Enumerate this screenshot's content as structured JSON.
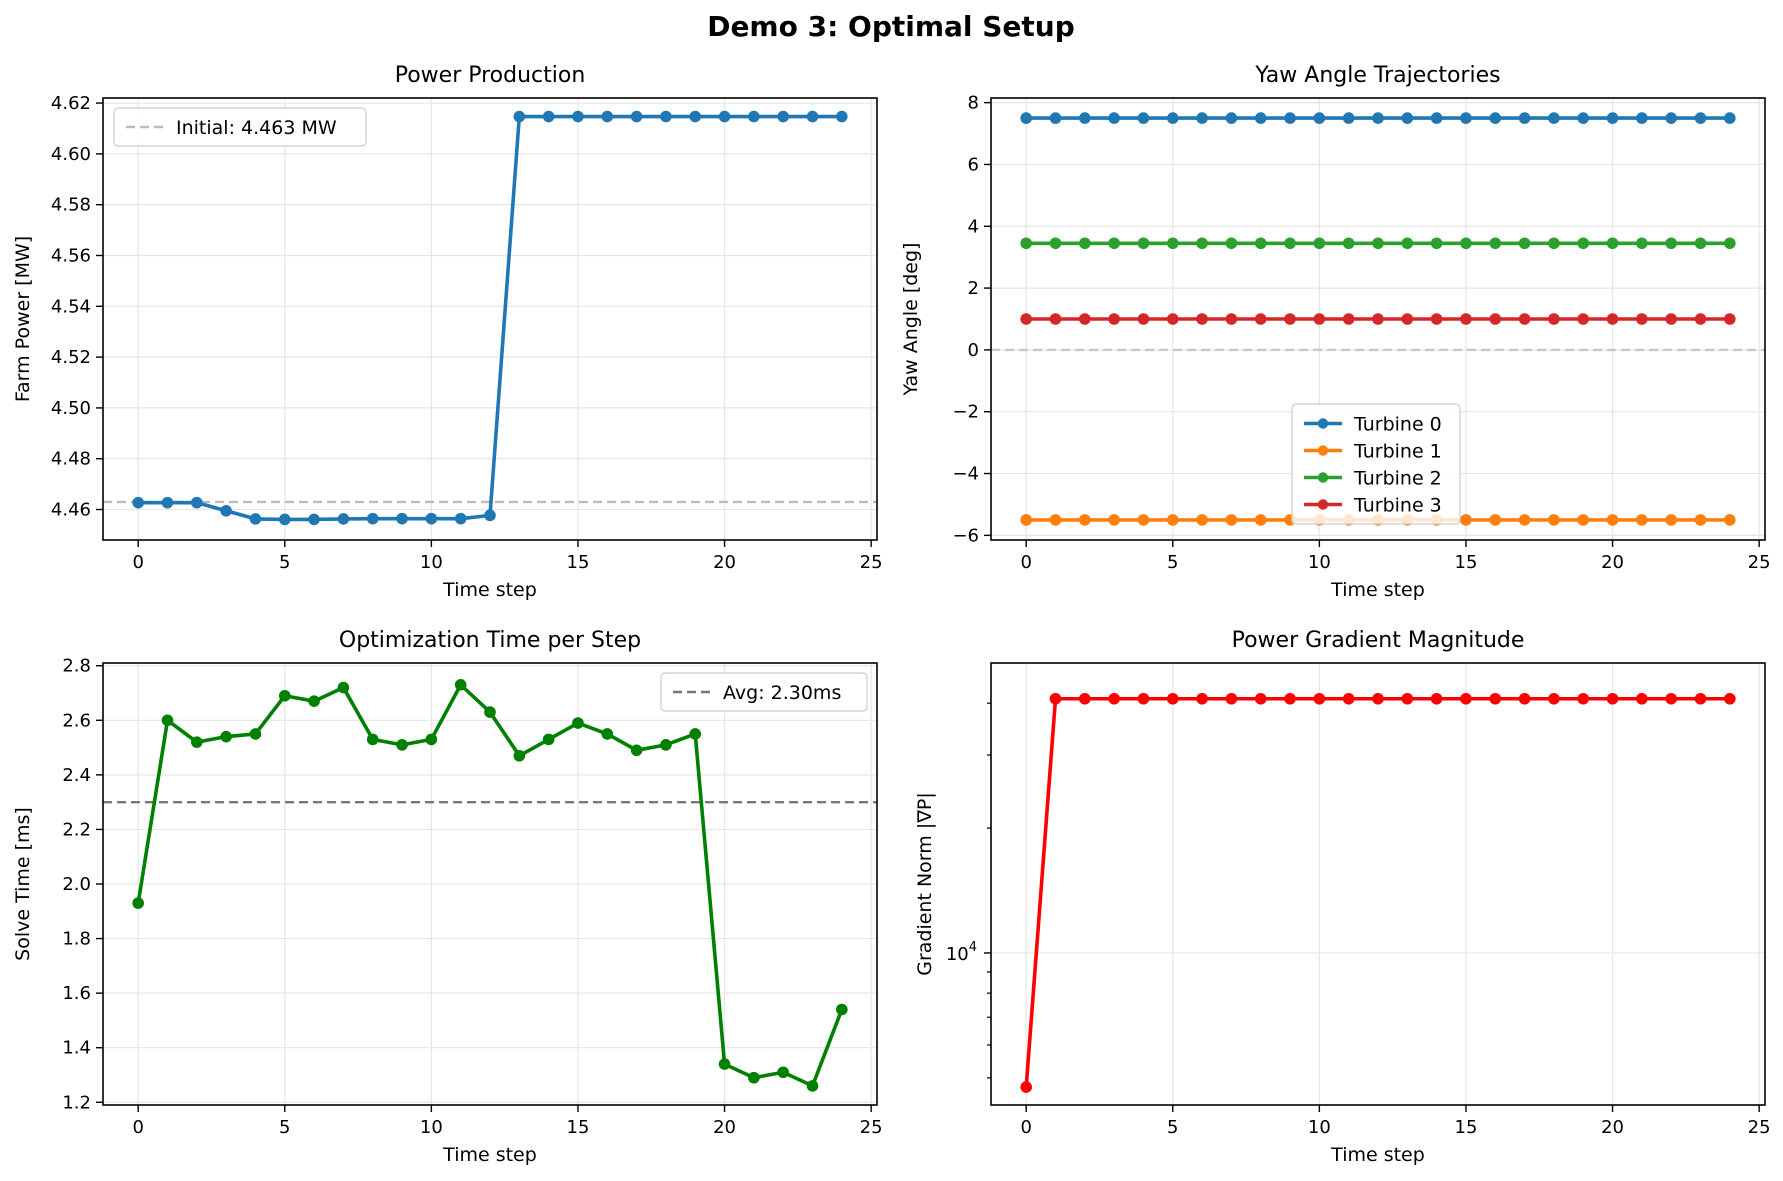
{
  "figure": {
    "title": "Demo 3: Optimal Setup"
  },
  "chart_data": [
    {
      "id": "power",
      "type": "line",
      "title": "Power Production",
      "xlabel": "Time step",
      "ylabel": "Farm Power [MW]",
      "xlim": [
        -1.2,
        25.2
      ],
      "ylim": [
        4.448,
        4.622
      ],
      "xticks": [
        0,
        5,
        10,
        15,
        20,
        25
      ],
      "xtick_labels": [
        "0",
        "5",
        "10",
        "15",
        "20",
        "25"
      ],
      "yticks": [
        4.46,
        4.48,
        4.5,
        4.52,
        4.54,
        4.56,
        4.58,
        4.6,
        4.62
      ],
      "ytick_labels": [
        "4.46",
        "4.48",
        "4.50",
        "4.52",
        "4.54",
        "4.56",
        "4.58",
        "4.60",
        "4.62"
      ],
      "grid": true,
      "legend_position": "top-left",
      "hlines": [
        {
          "y": 4.463,
          "label": "Initial: 4.463 MW",
          "color": "#bbbbbb",
          "style": "dashed"
        }
      ],
      "series": [
        {
          "name": "",
          "color": "#1f77b4",
          "x": [
            0,
            1,
            2,
            3,
            4,
            5,
            6,
            7,
            8,
            9,
            10,
            11,
            12,
            13,
            14,
            15,
            16,
            17,
            18,
            19,
            20,
            21,
            22,
            23,
            24
          ],
          "y": [
            4.4627,
            4.4627,
            4.4627,
            4.4595,
            4.4563,
            4.4561,
            4.4561,
            4.4563,
            4.4564,
            4.4564,
            4.4564,
            4.4564,
            4.4577,
            4.6147,
            4.6147,
            4.6147,
            4.6147,
            4.6147,
            4.6147,
            4.6147,
            4.6147,
            4.6147,
            4.6147,
            4.6147,
            4.6147
          ]
        }
      ]
    },
    {
      "id": "yaw",
      "type": "line",
      "title": "Yaw Angle Trajectories",
      "xlabel": "Time step",
      "ylabel": "Yaw Angle [deg]",
      "xlim": [
        -1.2,
        25.2
      ],
      "ylim": [
        -6.15,
        8.15
      ],
      "xticks": [
        0,
        5,
        10,
        15,
        20,
        25
      ],
      "xtick_labels": [
        "0",
        "5",
        "10",
        "15",
        "20",
        "25"
      ],
      "yticks": [
        -6,
        -4,
        -2,
        0,
        2,
        4,
        6,
        8
      ],
      "ytick_labels": [
        "−6",
        "−4",
        "−2",
        "0",
        "2",
        "4",
        "6",
        "8"
      ],
      "grid": true,
      "legend_position": "lower-center",
      "hlines": [
        {
          "y": 0,
          "label": "",
          "color": "#c8c8c8",
          "style": "dashed"
        }
      ],
      "series": [
        {
          "name": "Turbine 0",
          "color": "#1f77b4",
          "x": [
            0,
            1,
            2,
            3,
            4,
            5,
            6,
            7,
            8,
            9,
            10,
            11,
            12,
            13,
            14,
            15,
            16,
            17,
            18,
            19,
            20,
            21,
            22,
            23,
            24
          ],
          "y": [
            7.5,
            7.5,
            7.5,
            7.5,
            7.5,
            7.5,
            7.5,
            7.5,
            7.5,
            7.5,
            7.5,
            7.5,
            7.5,
            7.5,
            7.5,
            7.5,
            7.5,
            7.5,
            7.5,
            7.5,
            7.5,
            7.5,
            7.5,
            7.5,
            7.5
          ]
        },
        {
          "name": "Turbine 1",
          "color": "#ff7f0e",
          "x": [
            0,
            1,
            2,
            3,
            4,
            5,
            6,
            7,
            8,
            9,
            10,
            11,
            12,
            13,
            14,
            15,
            16,
            17,
            18,
            19,
            20,
            21,
            22,
            23,
            24
          ],
          "y": [
            -5.5,
            -5.5,
            -5.5,
            -5.5,
            -5.5,
            -5.5,
            -5.5,
            -5.5,
            -5.5,
            -5.5,
            -5.5,
            -5.5,
            -5.5,
            -5.5,
            -5.5,
            -5.5,
            -5.5,
            -5.5,
            -5.5,
            -5.5,
            -5.5,
            -5.5,
            -5.5,
            -5.5,
            -5.5
          ]
        },
        {
          "name": "Turbine 2",
          "color": "#2ca02c",
          "x": [
            0,
            1,
            2,
            3,
            4,
            5,
            6,
            7,
            8,
            9,
            10,
            11,
            12,
            13,
            14,
            15,
            16,
            17,
            18,
            19,
            20,
            21,
            22,
            23,
            24
          ],
          "y": [
            3.45,
            3.45,
            3.45,
            3.45,
            3.45,
            3.45,
            3.45,
            3.45,
            3.45,
            3.45,
            3.45,
            3.45,
            3.45,
            3.45,
            3.45,
            3.45,
            3.45,
            3.45,
            3.45,
            3.45,
            3.45,
            3.45,
            3.45,
            3.45,
            3.45
          ]
        },
        {
          "name": "Turbine 3",
          "color": "#d62728",
          "x": [
            0,
            1,
            2,
            3,
            4,
            5,
            6,
            7,
            8,
            9,
            10,
            11,
            12,
            13,
            14,
            15,
            16,
            17,
            18,
            19,
            20,
            21,
            22,
            23,
            24
          ],
          "y": [
            1.0,
            1.0,
            1.0,
            1.0,
            1.0,
            1.0,
            1.0,
            1.0,
            1.0,
            1.0,
            1.0,
            1.0,
            1.0,
            1.0,
            1.0,
            1.0,
            1.0,
            1.0,
            1.0,
            1.0,
            1.0,
            1.0,
            1.0,
            1.0,
            1.0
          ]
        }
      ]
    },
    {
      "id": "time",
      "type": "line",
      "title": "Optimization Time per Step",
      "xlabel": "Time step",
      "ylabel": "Solve Time [ms]",
      "xlim": [
        -1.2,
        25.2
      ],
      "ylim": [
        1.19,
        2.81
      ],
      "xticks": [
        0,
        5,
        10,
        15,
        20,
        25
      ],
      "xtick_labels": [
        "0",
        "5",
        "10",
        "15",
        "20",
        "25"
      ],
      "yticks": [
        1.2,
        1.4,
        1.6,
        1.8,
        2.0,
        2.2,
        2.4,
        2.6,
        2.8
      ],
      "ytick_labels": [
        "1.2",
        "1.4",
        "1.6",
        "1.8",
        "2.0",
        "2.2",
        "2.4",
        "2.6",
        "2.8"
      ],
      "grid": true,
      "legend_position": "top-right",
      "hlines": [
        {
          "y": 2.3,
          "label": "Avg: 2.30ms",
          "color": "#777777",
          "style": "dashed"
        }
      ],
      "series": [
        {
          "name": "",
          "color": "#008000",
          "x": [
            0,
            1,
            2,
            3,
            4,
            5,
            6,
            7,
            8,
            9,
            10,
            11,
            12,
            13,
            14,
            15,
            16,
            17,
            18,
            19,
            20,
            21,
            22,
            23,
            24
          ],
          "y": [
            1.93,
            2.6,
            2.52,
            2.54,
            2.55,
            2.69,
            2.67,
            2.72,
            2.53,
            2.51,
            2.53,
            2.73,
            2.63,
            2.47,
            2.53,
            2.59,
            2.55,
            2.49,
            2.51,
            2.55,
            1.34,
            1.29,
            1.31,
            1.26,
            1.54
          ]
        }
      ]
    },
    {
      "id": "grad",
      "type": "line",
      "title": "Power Gradient Magnitude",
      "xlabel": "Time step",
      "ylabel": "Gradient Norm |∇P|",
      "xlim": [
        -1.2,
        25.2
      ],
      "ylim": [
        4300,
        50000
      ],
      "yscale": "log",
      "xticks": [
        0,
        5,
        10,
        15,
        20,
        25
      ],
      "xtick_labels": [
        "0",
        "5",
        "10",
        "15",
        "20",
        "25"
      ],
      "yticks": [
        10000
      ],
      "ytick_labels": [
        "10⁴"
      ],
      "ytick_base": "10",
      "ytick_exp": "4",
      "grid": true,
      "legend_position": "",
      "hlines": [],
      "series": [
        {
          "name": "",
          "color": "#ff0000",
          "x": [
            0,
            1,
            2,
            3,
            4,
            5,
            6,
            7,
            8,
            9,
            10,
            11,
            12,
            13,
            14,
            15,
            16,
            17,
            18,
            19,
            20,
            21,
            22,
            23,
            24
          ],
          "y": [
            4750,
            41000,
            41000,
            41000,
            41000,
            41000,
            41000,
            41000,
            41000,
            41000,
            41000,
            41000,
            41000,
            41000,
            41000,
            41000,
            41000,
            41000,
            41000,
            41000,
            41000,
            41000,
            41000,
            41000,
            41000
          ]
        }
      ]
    }
  ]
}
